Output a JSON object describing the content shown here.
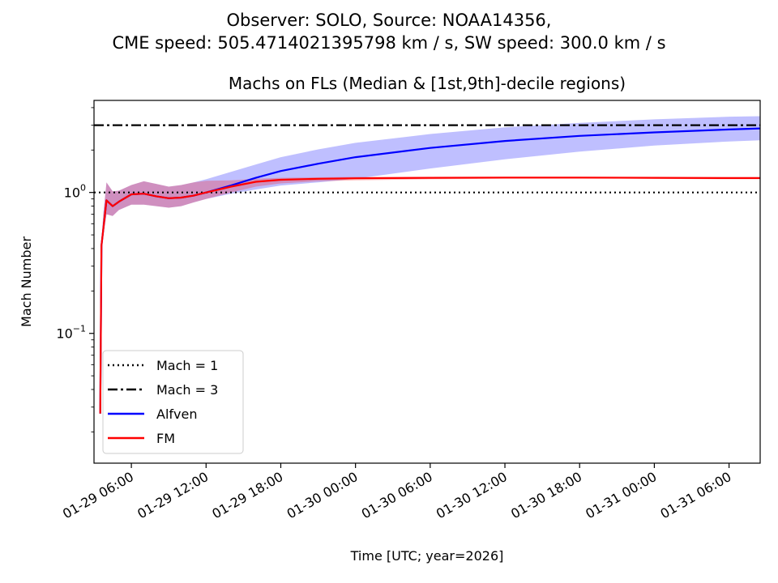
{
  "figure": {
    "suptitle_line1": "Observer: SOLO, Source: NOAA14356,",
    "suptitle_line2": "CME speed: 505.4714021395798 km / s, SW speed: 300.0 km / s"
  },
  "chart_data": {
    "type": "line",
    "title": "Machs on FLs (Median & [1st,9th]-decile regions)",
    "xlabel": "Time [UTC; year=2026]",
    "ylabel": "Mach Number",
    "y_scale": "log",
    "ylim": [
      0.012,
      4.5
    ],
    "xlim": [
      "2026-01-29 03:00",
      "2026-01-31 08:30"
    ],
    "x_tick_labels": [
      "01-29 06:00",
      "01-29 12:00",
      "01-29 18:00",
      "01-30 00:00",
      "01-30 06:00",
      "01-30 12:00",
      "01-30 18:00",
      "01-31 00:00",
      "01-31 06:00"
    ],
    "x_ticks": [
      "2026-01-29 06:00",
      "2026-01-29 12:00",
      "2026-01-29 18:00",
      "2026-01-30 00:00",
      "2026-01-30 06:00",
      "2026-01-30 12:00",
      "2026-01-30 18:00",
      "2026-01-31 00:00",
      "2026-01-31 06:00"
    ],
    "y_tick_labels": [
      {
        "value": 1,
        "base": "10",
        "exp": "0"
      },
      {
        "value": 0.1,
        "base": "10",
        "exp": "−1"
      }
    ],
    "grid": false,
    "legend_position": "lower-left",
    "reference_lines": [
      {
        "name": "Mach = 1",
        "value": 1,
        "style": "dotted",
        "color": "#000000"
      },
      {
        "name": "Mach = 3",
        "value": 3,
        "style": "dashdot",
        "color": "#000000"
      }
    ],
    "series": [
      {
        "name": "Alfven",
        "color": "#0000ff",
        "band_color": "#0000ff",
        "band_opacity": 0.25,
        "x": [
          "2026-01-29 03:30",
          "2026-01-29 03:36",
          "2026-01-29 03:45",
          "2026-01-29 04:00",
          "2026-01-29 04:30",
          "2026-01-29 05:00",
          "2026-01-29 06:00",
          "2026-01-29 07:00",
          "2026-01-29 08:00",
          "2026-01-29 09:00",
          "2026-01-29 10:00",
          "2026-01-29 11:00",
          "2026-01-29 12:00",
          "2026-01-29 14:00",
          "2026-01-29 16:00",
          "2026-01-29 18:00",
          "2026-01-29 21:00",
          "2026-01-30 00:00",
          "2026-01-30 06:00",
          "2026-01-30 12:00",
          "2026-01-30 18:00",
          "2026-01-31 00:00",
          "2026-01-31 06:00",
          "2026-01-31 08:40"
        ],
        "median": [
          0.027,
          0.42,
          0.55,
          0.88,
          0.8,
          0.86,
          0.97,
          0.98,
          0.94,
          0.91,
          0.92,
          0.95,
          1.0,
          1.12,
          1.27,
          1.42,
          1.6,
          1.78,
          2.07,
          2.32,
          2.52,
          2.67,
          2.8,
          2.85
        ],
        "lower": [
          0.027,
          0.4,
          0.5,
          0.7,
          0.68,
          0.75,
          0.82,
          0.82,
          0.8,
          0.78,
          0.8,
          0.85,
          0.9,
          0.98,
          1.05,
          1.12,
          1.18,
          1.25,
          1.48,
          1.72,
          1.95,
          2.15,
          2.3,
          2.35
        ],
        "upper": [
          0.027,
          0.45,
          0.7,
          1.18,
          1.02,
          1.03,
          1.13,
          1.2,
          1.15,
          1.1,
          1.13,
          1.18,
          1.24,
          1.4,
          1.58,
          1.78,
          2.02,
          2.25,
          2.6,
          2.9,
          3.12,
          3.3,
          3.45,
          3.48
        ]
      },
      {
        "name": "FM",
        "color": "#ff0000",
        "band_color": "#ff0000",
        "band_opacity": 0.25,
        "x": [
          "2026-01-29 03:30",
          "2026-01-29 03:36",
          "2026-01-29 03:45",
          "2026-01-29 04:00",
          "2026-01-29 04:30",
          "2026-01-29 05:00",
          "2026-01-29 06:00",
          "2026-01-29 07:00",
          "2026-01-29 08:00",
          "2026-01-29 09:00",
          "2026-01-29 10:00",
          "2026-01-29 11:00",
          "2026-01-29 12:00",
          "2026-01-29 14:00",
          "2026-01-29 16:00",
          "2026-01-29 18:00",
          "2026-01-29 21:00",
          "2026-01-30 00:00",
          "2026-01-30 06:00",
          "2026-01-30 12:00",
          "2026-01-30 18:00",
          "2026-01-31 00:00",
          "2026-01-31 06:00",
          "2026-01-31 08:40"
        ],
        "median": [
          0.027,
          0.42,
          0.55,
          0.88,
          0.8,
          0.86,
          0.97,
          0.98,
          0.94,
          0.91,
          0.92,
          0.95,
          1.0,
          1.1,
          1.19,
          1.23,
          1.25,
          1.26,
          1.27,
          1.275,
          1.275,
          1.27,
          1.265,
          1.265
        ],
        "lower": [
          0.027,
          0.4,
          0.5,
          0.7,
          0.68,
          0.75,
          0.82,
          0.82,
          0.8,
          0.78,
          0.8,
          0.85,
          0.9,
          1.0,
          1.1,
          1.16,
          1.2,
          1.22,
          1.24,
          1.25,
          1.25,
          1.25,
          1.24,
          1.24
        ],
        "upper": [
          0.027,
          0.45,
          0.7,
          1.18,
          1.02,
          1.03,
          1.13,
          1.2,
          1.15,
          1.1,
          1.13,
          1.18,
          1.21,
          1.22,
          1.25,
          1.27,
          1.28,
          1.29,
          1.29,
          1.29,
          1.29,
          1.29,
          1.285,
          1.285
        ]
      }
    ],
    "legend_entries": [
      "Mach = 1",
      "Mach = 3",
      "Alfven",
      "FM"
    ]
  }
}
